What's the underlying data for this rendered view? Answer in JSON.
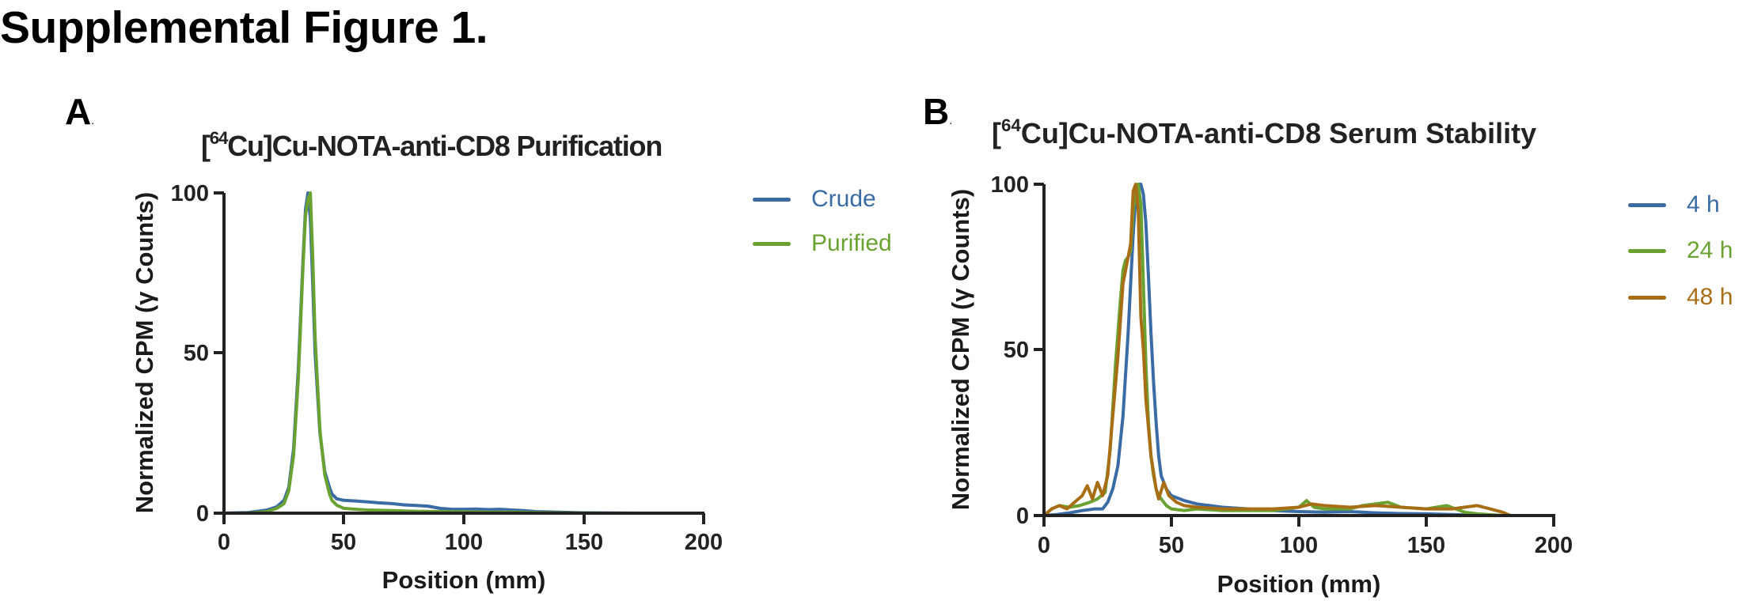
{
  "figure": {
    "title": "Supplemental Figure 1."
  },
  "panels": [
    {
      "letter": "A",
      "title_prefix": "[",
      "title_sup": "64",
      "title_rest": "Cu]Cu-NOTA-anti-CD8 Purification",
      "xlabel": "Position (mm)",
      "ylabel": "Normalized CPM (γ Counts)",
      "xticks": [
        "0",
        "50",
        "100",
        "150",
        "200"
      ],
      "yticks": [
        "0",
        "50",
        "100"
      ],
      "legend": [
        {
          "label": "Crude",
          "color": "#3A6BA5"
        },
        {
          "label": "Purified",
          "color": "#6AA232"
        }
      ]
    },
    {
      "letter": "B",
      "title_prefix": "[",
      "title_sup": "64",
      "title_rest": "Cu]Cu-NOTA-anti-CD8 Serum Stability",
      "xlabel": "Position (mm)",
      "ylabel": "Normalized CPM (γ Counts)",
      "xticks": [
        "0",
        "50",
        "100",
        "150",
        "200"
      ],
      "yticks": [
        "0",
        "50",
        "100"
      ],
      "legend": [
        {
          "label": "4 h",
          "color": "#3A6BA5"
        },
        {
          "label": "24 h",
          "color": "#6AA232"
        },
        {
          "label": "48 h",
          "color": "#A86E16"
        }
      ]
    }
  ],
  "chart_data": [
    {
      "type": "line",
      "title": "[64Cu]Cu-NOTA-anti-CD8 Purification",
      "xlabel": "Position (mm)",
      "ylabel": "Normalized CPM (γ Counts)",
      "xlim": [
        0,
        200
      ],
      "ylim": [
        0,
        100
      ],
      "xticks": [
        0,
        50,
        100,
        150,
        200
      ],
      "yticks": [
        0,
        50,
        100
      ],
      "grid": false,
      "legend_position": "right",
      "series": [
        {
          "name": "Crude",
          "color": "#3A6BA5",
          "x": [
            0,
            10,
            18,
            22,
            25,
            27,
            29,
            31,
            33,
            34,
            35,
            36,
            37,
            38,
            40,
            42,
            44,
            45,
            47,
            50,
            55,
            60,
            65,
            70,
            75,
            80,
            85,
            90,
            95,
            100,
            105,
            110,
            115,
            120,
            125,
            130,
            140,
            150,
            160,
            175,
            200
          ],
          "y": [
            0,
            0.2,
            1,
            2,
            4,
            8,
            20,
            45,
            80,
            95,
            100,
            92,
            72,
            50,
            25,
            13,
            8,
            6,
            4.5,
            4,
            3.8,
            3.5,
            3.2,
            3,
            2.6,
            2.4,
            2.2,
            1.5,
            1.2,
            1.2,
            1.3,
            1.1,
            1.2,
            1.0,
            0.8,
            0.5,
            0.3,
            0.1,
            0.05,
            0,
            0
          ]
        },
        {
          "name": "Purified",
          "color": "#6AA232",
          "x": [
            0,
            10,
            18,
            22,
            25,
            27,
            29,
            31,
            33,
            34,
            35,
            36,
            37,
            38,
            40,
            42,
            44,
            45,
            47,
            50,
            55,
            60,
            70,
            80,
            90,
            100,
            110,
            120,
            130,
            145,
            160,
            200
          ],
          "y": [
            0,
            0,
            0.5,
            1.5,
            3,
            7,
            18,
            42,
            78,
            93,
            98,
            100,
            80,
            55,
            26,
            12,
            6,
            4,
            2.5,
            1.5,
            1.2,
            1,
            0.8,
            0.6,
            0.5,
            0.4,
            0.3,
            0.3,
            0.2,
            0.1,
            0,
            0
          ]
        }
      ]
    },
    {
      "type": "line",
      "title": "[64Cu]Cu-NOTA-anti-CD8 Serum Stability",
      "xlabel": "Position (mm)",
      "ylabel": "Normalized CPM (γ Counts)",
      "xlim": [
        0,
        200
      ],
      "ylim": [
        0,
        100
      ],
      "xticks": [
        0,
        50,
        100,
        150,
        200
      ],
      "yticks": [
        0,
        50,
        100
      ],
      "grid": false,
      "legend_position": "right",
      "series": [
        {
          "name": "4 h",
          "color": "#3A6BA5",
          "x": [
            0,
            5,
            10,
            15,
            20,
            23,
            25,
            27,
            29,
            31,
            33,
            35,
            36,
            37,
            38,
            39,
            40,
            41,
            42,
            43,
            44,
            45,
            46,
            48,
            50,
            55,
            60,
            65,
            70,
            80,
            90,
            100,
            110,
            120,
            130,
            140,
            150,
            160,
            170,
            180,
            200
          ],
          "y": [
            0,
            0.3,
            0.8,
            1.5,
            2,
            2,
            4,
            8,
            15,
            30,
            55,
            85,
            96,
            100,
            100,
            97,
            88,
            72,
            55,
            40,
            28,
            18,
            12,
            8,
            6,
            4.5,
            3.5,
            3,
            2.5,
            2,
            1.5,
            1.2,
            1,
            1.2,
            0.8,
            0.6,
            0.5,
            0.3,
            0.1,
            0,
            0
          ]
        },
        {
          "name": "24 h",
          "color": "#6AA232",
          "x": [
            0,
            3,
            6,
            10,
            14,
            18,
            21,
            24,
            26,
            28,
            30,
            31,
            32,
            33,
            34,
            35,
            36,
            37,
            38,
            39,
            40,
            41,
            42,
            43,
            44,
            45,
            48,
            50,
            55,
            60,
            70,
            80,
            90,
            95,
            100,
            103,
            106,
            110,
            120,
            125,
            130,
            135,
            140,
            150,
            158,
            165,
            170,
            180
          ],
          "y": [
            0,
            2,
            3,
            2.5,
            3,
            4,
            5,
            7,
            20,
            45,
            65,
            74,
            77,
            78,
            80,
            92,
            98,
            100,
            94,
            70,
            45,
            28,
            18,
            12,
            8,
            6,
            3,
            2,
            1.5,
            2,
            1.5,
            1.5,
            1.5,
            2,
            2.5,
            4.5,
            2.5,
            2,
            2,
            3,
            3.5,
            4,
            2.5,
            2,
            3,
            1,
            0.5,
            0
          ]
        },
        {
          "name": "48 h",
          "color": "#A86E16",
          "x": [
            0,
            3,
            6,
            9,
            12,
            15,
            17,
            19,
            21,
            23,
            25,
            27,
            29,
            31,
            33,
            34,
            35,
            36,
            37,
            38,
            39,
            40,
            42,
            44,
            45,
            47,
            49,
            52,
            55,
            60,
            70,
            80,
            90,
            100,
            105,
            110,
            120,
            130,
            140,
            150,
            160,
            170,
            175,
            180,
            183
          ],
          "y": [
            0,
            2,
            3,
            2,
            4,
            6,
            9,
            5,
            10,
            6,
            12,
            30,
            48,
            70,
            78,
            82,
            98,
            100,
            92,
            60,
            50,
            35,
            18,
            8,
            5,
            10,
            6,
            4,
            3,
            2.5,
            2,
            2,
            2,
            2.5,
            3.5,
            3,
            2.5,
            3,
            2.5,
            2,
            2,
            3,
            2,
            1,
            0
          ]
        }
      ]
    }
  ]
}
